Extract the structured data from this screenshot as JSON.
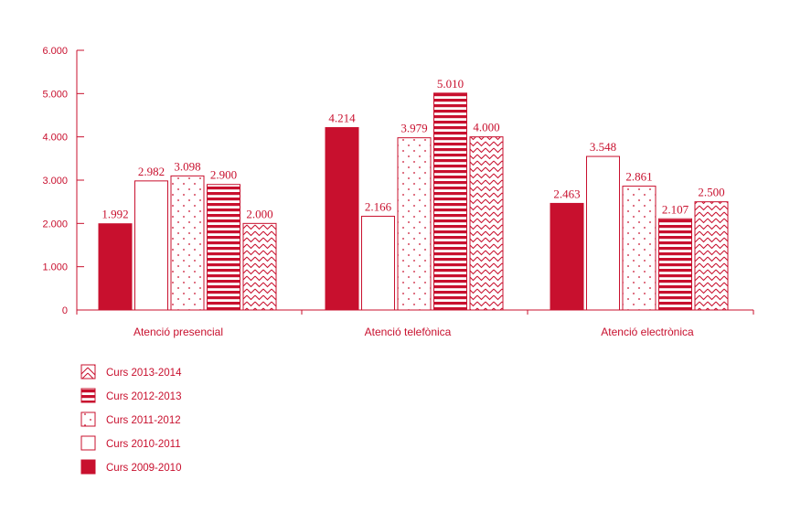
{
  "colors": {
    "accent": "#c8102e",
    "background": "#ffffff"
  },
  "chart_data": {
    "type": "bar",
    "categories": [
      "Atenció presencial",
      "Atenció telefònica",
      "Atenció electrònica"
    ],
    "series": [
      {
        "name": "Curs 2009-2010",
        "pattern": "solid",
        "values": [
          1992,
          4214,
          2463
        ],
        "labels": [
          "1.992",
          "4.214",
          "2.463"
        ]
      },
      {
        "name": "Curs 2010-2011",
        "pattern": "outline",
        "values": [
          2982,
          2166,
          3548
        ],
        "labels": [
          "2.982",
          "2.166",
          "3.548"
        ]
      },
      {
        "name": "Curs 2011-2012",
        "pattern": "dots",
        "values": [
          3098,
          3979,
          2861
        ],
        "labels": [
          "3.098",
          "3.979",
          "2.861"
        ]
      },
      {
        "name": "Curs 2012-2013",
        "pattern": "stripes",
        "values": [
          2900,
          5010,
          2107
        ],
        "labels": [
          "2.900",
          "5.010",
          "2.107"
        ]
      },
      {
        "name": "Curs 2013-2014",
        "pattern": "zigzag",
        "values": [
          2000,
          4000,
          2500
        ],
        "labels": [
          "2.000",
          "4.000",
          "2.500"
        ]
      }
    ],
    "ylim": [
      0,
      6000
    ],
    "yticks": [
      0,
      1000,
      2000,
      3000,
      4000,
      5000,
      6000
    ],
    "ytick_labels": [
      "0",
      "1.000",
      "2.000",
      "3.000",
      "4.000",
      "5.000",
      "6.000"
    ],
    "grid": false,
    "legend_position": "bottom-left",
    "legend_order": [
      "Curs 2013-2014",
      "Curs 2012-2013",
      "Curs 2011-2012",
      "Curs 2010-2011",
      "Curs 2009-2010"
    ]
  }
}
